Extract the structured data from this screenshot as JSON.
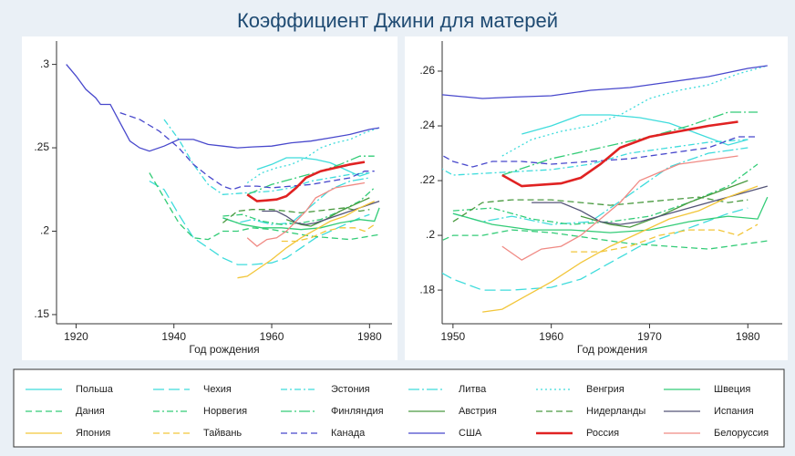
{
  "chart_data": {
    "type": "line",
    "title": "Коэффициент Джини для матерей",
    "legend": "bottom",
    "grid": false,
    "panels": [
      {
        "xlabel": "Год рождения",
        "xlim": [
          1916,
          1984.6
        ],
        "ylim": [
          0.1445,
          0.314
        ],
        "xticks": [
          1920,
          1940,
          1960,
          1980
        ],
        "yticks": [
          {
            "value": 0.15,
            "label": ".15"
          },
          {
            "value": 0.2,
            "label": ".2"
          },
          {
            "value": 0.25,
            "label": ".25"
          },
          {
            "value": 0.3,
            "label": ".3"
          }
        ]
      },
      {
        "xlabel": "Год рождения",
        "xlim": [
          1948.9,
          1983.5
        ],
        "ylim": [
          0.1677,
          0.271
        ],
        "xticks": [
          1950,
          1960,
          1970,
          1980
        ],
        "yticks": [
          {
            "value": 0.18,
            "label": ".18"
          },
          {
            "value": 0.2,
            "label": ".2"
          },
          {
            "value": 0.22,
            "label": ".22"
          },
          {
            "value": 0.24,
            "label": ".24"
          },
          {
            "value": 0.26,
            "label": ".26"
          }
        ]
      }
    ],
    "series": [
      {
        "name": "Польша",
        "color": "#3fdcdc",
        "dash": "solid",
        "x": [
          1957,
          1960,
          1963,
          1966,
          1969,
          1972,
          1975,
          1978,
          1980
        ],
        "values": [
          0.237,
          0.24,
          0.244,
          0.244,
          0.243,
          0.241,
          0.237,
          0.233,
          0.235
        ]
      },
      {
        "name": "Чехия",
        "color": "#3fdcdc",
        "dash": "longdash",
        "x": [
          1935,
          1938,
          1941,
          1944,
          1947,
          1950,
          1953,
          1956,
          1960,
          1963,
          1966,
          1969,
          1972,
          1975,
          1978,
          1980
        ],
        "values": [
          0.23,
          0.225,
          0.21,
          0.196,
          0.19,
          0.184,
          0.18,
          0.18,
          0.181,
          0.184,
          0.19,
          0.196,
          0.2,
          0.204,
          0.208,
          0.21
        ]
      },
      {
        "name": "Эстония",
        "color": "#3fdcdc",
        "dash": "dashdot",
        "x": [
          1938,
          1941,
          1944,
          1947,
          1950,
          1955,
          1960,
          1964,
          1968,
          1972,
          1976,
          1980
        ],
        "values": [
          0.267,
          0.255,
          0.24,
          0.228,
          0.222,
          0.223,
          0.224,
          0.226,
          0.23,
          0.232,
          0.234,
          0.235
        ]
      },
      {
        "name": "Литва",
        "color": "#3fdcdc",
        "dash": "longdashdot",
        "x": [
          1950,
          1953,
          1956,
          1960,
          1964,
          1968,
          1972,
          1976,
          1980
        ],
        "values": [
          0.208,
          0.205,
          0.207,
          0.204,
          0.205,
          0.215,
          0.225,
          0.23,
          0.232
        ]
      },
      {
        "name": "Венгрия",
        "color": "#3fdcdc",
        "dash": "dot",
        "x": [
          1955,
          1958,
          1961,
          1964,
          1967,
          1970,
          1973,
          1976,
          1979,
          1982
        ],
        "values": [
          0.229,
          0.235,
          0.238,
          0.24,
          0.244,
          0.25,
          0.253,
          0.255,
          0.259,
          0.262
        ]
      },
      {
        "name": "Швеция",
        "color": "#33cc77",
        "dash": "solid",
        "x": [
          1950,
          1954,
          1958,
          1962,
          1966,
          1970,
          1974,
          1978,
          1981,
          1982
        ],
        "values": [
          0.208,
          0.204,
          0.202,
          0.202,
          0.201,
          0.202,
          0.205,
          0.207,
          0.206,
          0.214
        ]
      },
      {
        "name": "Дания",
        "color": "#33cc77",
        "dash": "dash",
        "x": [
          1935,
          1938,
          1941,
          1944,
          1947,
          1950,
          1953,
          1956,
          1960,
          1964,
          1968,
          1972,
          1976,
          1980,
          1982
        ],
        "values": [
          0.235,
          0.22,
          0.205,
          0.196,
          0.195,
          0.2,
          0.2,
          0.202,
          0.201,
          0.199,
          0.197,
          0.196,
          0.195,
          0.197,
          0.198
        ]
      },
      {
        "name": "Норвегия",
        "color": "#33cc77",
        "dash": "dashdot",
        "x": [
          1950,
          1954,
          1958,
          1962,
          1966,
          1970,
          1974,
          1978,
          1981
        ],
        "values": [
          0.209,
          0.21,
          0.206,
          0.204,
          0.205,
          0.207,
          0.212,
          0.218,
          0.226
        ]
      },
      {
        "name": "Финляндия",
        "color": "#33cc77",
        "dash": "longdashdot",
        "x": [
          1955,
          1960,
          1965,
          1970,
          1974,
          1978,
          1981
        ],
        "values": [
          0.222,
          0.228,
          0.232,
          0.236,
          0.24,
          0.245,
          0.245
        ]
      },
      {
        "name": "Австрия",
        "color": "#4a9a40",
        "dash": "solid",
        "x": [
          1963,
          1966,
          1968,
          1971,
          1974,
          1977,
          1980
        ],
        "values": [
          0.207,
          0.204,
          0.203,
          0.207,
          0.212,
          0.216,
          0.22
        ]
      },
      {
        "name": "Нидерланды",
        "color": "#4a9a40",
        "dash": "dash",
        "x": [
          1950,
          1953,
          1956,
          1960,
          1963,
          1966,
          1969,
          1972,
          1975,
          1978,
          1980
        ],
        "values": [
          0.205,
          0.212,
          0.213,
          0.213,
          0.212,
          0.211,
          0.212,
          0.213,
          0.214,
          0.212,
          0.213
        ]
      },
      {
        "name": "Испания",
        "color": "#545478",
        "dash": "solid",
        "x": [
          1958,
          1961,
          1963,
          1965,
          1967,
          1969,
          1971,
          1974,
          1977,
          1980,
          1982
        ],
        "values": [
          0.212,
          0.212,
          0.209,
          0.205,
          0.204,
          0.205,
          0.207,
          0.21,
          0.213,
          0.216,
          0.218
        ]
      },
      {
        "name": "Япония",
        "color": "#f2c63a",
        "dash": "solid",
        "x": [
          1953,
          1955,
          1957,
          1960,
          1963,
          1966,
          1969,
          1972,
          1975,
          1978,
          1981
        ],
        "values": [
          0.172,
          0.173,
          0.177,
          0.183,
          0.19,
          0.196,
          0.201,
          0.206,
          0.209,
          0.214,
          0.218
        ]
      },
      {
        "name": "Тайвань",
        "color": "#f2c63a",
        "dash": "dash",
        "x": [
          1962,
          1965,
          1968,
          1971,
          1974,
          1977,
          1979,
          1981
        ],
        "values": [
          0.194,
          0.194,
          0.196,
          0.2,
          0.202,
          0.202,
          0.2,
          0.204
        ]
      },
      {
        "name": "Канада",
        "color": "#4848cc",
        "dash": "dash",
        "x": [
          1929,
          1933,
          1937,
          1941,
          1944,
          1947,
          1950,
          1952,
          1954,
          1957,
          1960,
          1964,
          1968,
          1972,
          1976,
          1979,
          1981
        ],
        "values": [
          0.271,
          0.267,
          0.26,
          0.25,
          0.24,
          0.233,
          0.227,
          0.225,
          0.227,
          0.227,
          0.226,
          0.227,
          0.228,
          0.23,
          0.232,
          0.236,
          0.236
        ]
      },
      {
        "name": "США",
        "color": "#4848cc",
        "dash": "solid",
        "x": [
          1918,
          1920,
          1922,
          1924,
          1925,
          1927,
          1929,
          1931,
          1933,
          1935,
          1938,
          1941,
          1944,
          1947,
          1950,
          1953,
          1956,
          1960,
          1964,
          1968,
          1972,
          1976,
          1980,
          1982
        ],
        "values": [
          0.3,
          0.293,
          0.285,
          0.28,
          0.276,
          0.276,
          0.265,
          0.254,
          0.25,
          0.248,
          0.251,
          0.255,
          0.255,
          0.252,
          0.251,
          0.25,
          0.2505,
          0.251,
          0.253,
          0.254,
          0.256,
          0.258,
          0.261,
          0.262
        ]
      },
      {
        "name": "Россия",
        "color": "#e02222",
        "dash": "thick",
        "x": [
          1955,
          1957,
          1959,
          1961,
          1963,
          1965,
          1967,
          1970,
          1973,
          1976,
          1979
        ],
        "values": [
          0.222,
          0.218,
          0.2185,
          0.219,
          0.221,
          0.226,
          0.232,
          0.236,
          0.238,
          0.24,
          0.2415
        ]
      },
      {
        "name": "Белоруссия",
        "color": "#f08a84",
        "dash": "solid",
        "x": [
          1955,
          1957,
          1959,
          1961,
          1963,
          1965,
          1967,
          1969,
          1971,
          1973,
          1975,
          1977,
          1979
        ],
        "values": [
          0.196,
          0.191,
          0.195,
          0.196,
          0.2,
          0.206,
          0.212,
          0.22,
          0.223,
          0.226,
          0.227,
          0.228,
          0.229
        ]
      }
    ]
  }
}
